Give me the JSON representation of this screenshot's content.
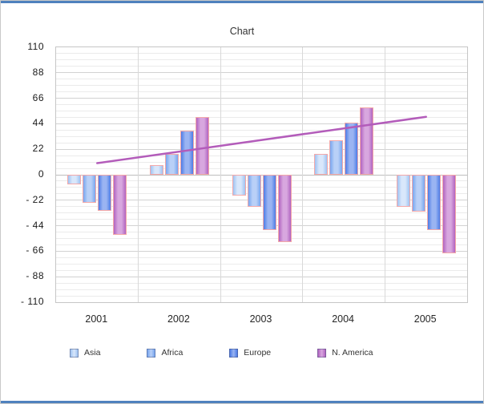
{
  "frame": {
    "accent_color": "#4f81bd"
  },
  "chart_data": {
    "type": "bar",
    "title": "Chart",
    "categories": [
      "2001",
      "2002",
      "2003",
      "2004",
      "2005"
    ],
    "series": [
      {
        "name": "Asia",
        "color": "#9fc3f2",
        "highlight": "#d9e7fb",
        "values": [
          -8,
          8,
          -18,
          18,
          -28
        ]
      },
      {
        "name": "Africa",
        "color": "#78a6ef",
        "highlight": "#b9d0f7",
        "values": [
          -24,
          18,
          -28,
          30,
          -32
        ]
      },
      {
        "name": "Europe",
        "color": "#4d7ce6",
        "highlight": "#9ab4f2",
        "values": [
          -31,
          38,
          -48,
          45,
          -48
        ]
      },
      {
        "name": "N. America",
        "color": "#b164c0",
        "highlight": "#d8a7df",
        "values": [
          -52,
          50,
          -58,
          58,
          -68
        ]
      }
    ],
    "trendline": {
      "start": 10,
      "end": 50,
      "color": "#b35cba"
    },
    "ylim": [
      -110,
      110
    ],
    "ytick_step": 22,
    "ytick_labels": [
      "110",
      "88",
      "66",
      "44",
      "22",
      "0",
      "- 22",
      "- 44",
      "- 66",
      "- 88",
      "- 110"
    ],
    "bar_outline": "#f4a8a8",
    "grid": true,
    "legend_position": "bottom"
  }
}
